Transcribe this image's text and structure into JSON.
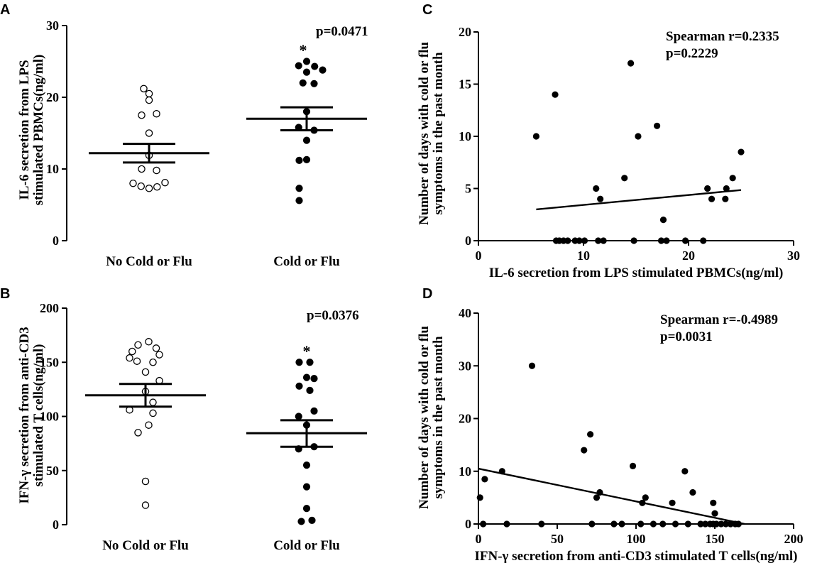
{
  "chart_data": [
    {
      "panel": "A",
      "type": "scatter",
      "ylabel_line1": "IL-6 secretion from LPS",
      "ylabel_line2": "stimulated PBMCs(ng/ml)",
      "ylim": [
        0,
        30
      ],
      "yticks": [
        "0",
        "10",
        "20",
        "30"
      ],
      "categories": [
        "No Cold or Flu",
        "Cold or Flu"
      ],
      "annotation": "p=0.0471",
      "significance": "*",
      "groups": [
        {
          "name": "No Cold or Flu",
          "marker": "open-circle",
          "points": [
            {
              "v": 21.2,
              "o": -0.1
            },
            {
              "v": 20.5,
              "o": 0.0
            },
            {
              "v": 19.6,
              "o": 0.0
            },
            {
              "v": 17.5,
              "o": -0.14
            },
            {
              "v": 17.7,
              "o": 0.14
            },
            {
              "v": 15.0,
              "o": 0.0
            },
            {
              "v": 11.9,
              "o": 0.0
            },
            {
              "v": 10.0,
              "o": -0.14
            },
            {
              "v": 9.8,
              "o": 0.14
            },
            {
              "v": 8.0,
              "o": -0.3
            },
            {
              "v": 7.6,
              "o": -0.15
            },
            {
              "v": 7.3,
              "o": 0.0
            },
            {
              "v": 7.5,
              "o": 0.15
            },
            {
              "v": 8.1,
              "o": 0.3
            }
          ],
          "mean": 12.2,
          "sem_low": 10.9,
          "sem_high": 13.5
        },
        {
          "name": "Cold or Flu",
          "marker": "filled-circle",
          "points": [
            {
              "v": 25.0,
              "o": 0.0
            },
            {
              "v": 24.4,
              "o": -0.15
            },
            {
              "v": 24.3,
              "o": 0.15
            },
            {
              "v": 23.8,
              "o": 0.3
            },
            {
              "v": 23.5,
              "o": 0.0
            },
            {
              "v": 22.0,
              "o": -0.07
            },
            {
              "v": 21.9,
              "o": 0.14
            },
            {
              "v": 18.0,
              "o": 0.0
            },
            {
              "v": 15.8,
              "o": -0.15
            },
            {
              "v": 15.4,
              "o": 0.14
            },
            {
              "v": 14.0,
              "o": 0.0
            },
            {
              "v": 11.2,
              "o": -0.14
            },
            {
              "v": 11.3,
              "o": 0.0
            },
            {
              "v": 7.3,
              "o": -0.14
            },
            {
              "v": 5.6,
              "o": -0.14
            }
          ],
          "mean": 17.0,
          "sem_low": 15.4,
          "sem_high": 18.6
        }
      ]
    },
    {
      "panel": "B",
      "type": "scatter",
      "ylabel_line1": "IFN-γ secretion from anti-CD3",
      "ylabel_line2": "stimulated T cells(ng/ml)",
      "ylim": [
        0,
        200
      ],
      "yticks": [
        "0",
        "50",
        "100",
        "150",
        "200"
      ],
      "categories": [
        "No Cold or Flu",
        "Cold or Flu"
      ],
      "annotation": "p=0.0376",
      "significance": "*",
      "groups": [
        {
          "name": "No Cold or Flu",
          "marker": "open-circle",
          "points": [
            {
              "v": 169,
              "o": 0.06
            },
            {
              "v": 166,
              "o": -0.14
            },
            {
              "v": 163,
              "o": 0.2
            },
            {
              "v": 160,
              "o": -0.25
            },
            {
              "v": 157,
              "o": 0.26
            },
            {
              "v": 154,
              "o": -0.3
            },
            {
              "v": 151,
              "o": -0.16
            },
            {
              "v": 150,
              "o": 0.14
            },
            {
              "v": 141,
              "o": 0.0
            },
            {
              "v": 133,
              "o": 0.26
            },
            {
              "v": 123,
              "o": 0.0
            },
            {
              "v": 113,
              "o": 0.14
            },
            {
              "v": 106,
              "o": -0.3
            },
            {
              "v": 103,
              "o": 0.14
            },
            {
              "v": 92,
              "o": 0.06
            },
            {
              "v": 85,
              "o": -0.14
            },
            {
              "v": 40,
              "o": 0.0
            },
            {
              "v": 18,
              "o": 0.0
            }
          ],
          "mean": 119.5,
          "sem_low": 109,
          "sem_high": 130
        },
        {
          "name": "Cold or Flu",
          "marker": "filled-circle",
          "points": [
            {
              "v": 150,
              "o": -0.14
            },
            {
              "v": 150,
              "o": 0.06
            },
            {
              "v": 136,
              "o": 0.0
            },
            {
              "v": 135,
              "o": 0.14
            },
            {
              "v": 128,
              "o": -0.14
            },
            {
              "v": 124,
              "o": 0.06
            },
            {
              "v": 105,
              "o": 0.14
            },
            {
              "v": 100,
              "o": -0.15
            },
            {
              "v": 92,
              "o": 0.0
            },
            {
              "v": 72,
              "o": 0.14
            },
            {
              "v": 70,
              "o": -0.15
            },
            {
              "v": 55,
              "o": 0.0
            },
            {
              "v": 35,
              "o": 0.0
            },
            {
              "v": 15,
              "o": 0.0
            },
            {
              "v": 3,
              "o": -0.1
            },
            {
              "v": 4,
              "o": 0.1
            }
          ],
          "mean": 84.5,
          "sem_low": 72,
          "sem_high": 96.5
        }
      ]
    },
    {
      "panel": "C",
      "type": "scatter",
      "xlabel": "IL-6 secretion from LPS stimulated PBMCs(ng/ml)",
      "ylabel_line1": "Number of days with cold or flu",
      "ylabel_line2": "symptoms in the past month",
      "xlim": [
        0,
        30
      ],
      "ylim": [
        0,
        20
      ],
      "xticks": [
        "0",
        "10",
        "20",
        "30"
      ],
      "yticks": [
        "0",
        "5",
        "10",
        "15",
        "20"
      ],
      "annotation_line1": "Spearman r=0.2335",
      "annotation_line2": "p=0.2229",
      "points": [
        [
          5.5,
          10
        ],
        [
          7.3,
          14
        ],
        [
          14.5,
          17
        ],
        [
          15.2,
          10
        ],
        [
          17.0,
          11
        ],
        [
          11.2,
          5
        ],
        [
          11.6,
          4
        ],
        [
          13.9,
          6
        ],
        [
          17.6,
          2
        ],
        [
          21.8,
          5
        ],
        [
          22.2,
          4
        ],
        [
          23.6,
          5
        ],
        [
          23.5,
          4
        ],
        [
          24.2,
          6
        ],
        [
          25.0,
          8.5
        ],
        [
          7.4,
          0
        ],
        [
          7.7,
          0
        ],
        [
          8.1,
          0
        ],
        [
          8.5,
          0
        ],
        [
          9.2,
          0
        ],
        [
          9.6,
          0
        ],
        [
          10.1,
          0
        ],
        [
          11.4,
          0
        ],
        [
          11.9,
          0
        ],
        [
          14.8,
          0
        ],
        [
          17.4,
          0
        ],
        [
          17.9,
          0
        ],
        [
          19.7,
          0
        ],
        [
          21.4,
          0
        ]
      ],
      "fit_line": [
        [
          5.5,
          3.0
        ],
        [
          25.0,
          4.85
        ]
      ]
    },
    {
      "panel": "D",
      "type": "scatter",
      "xlabel": "IFN-γ secretion from anti-CD3 stimulated T cells(ng/ml)",
      "ylabel_line1": "Number of days with cold or flu",
      "ylabel_line2": "symptoms in the past month",
      "xlim": [
        0,
        200
      ],
      "ylim": [
        0,
        40
      ],
      "xticks": [
        "0",
        "50",
        "100",
        "150",
        "200"
      ],
      "yticks": [
        "0",
        "10",
        "20",
        "30",
        "40"
      ],
      "annotation_line1": "Spearman r=-0.4989",
      "annotation_line2": "p=0.0031",
      "points": [
        [
          1,
          5
        ],
        [
          4,
          8.5
        ],
        [
          34,
          30
        ],
        [
          15,
          10
        ],
        [
          67,
          14
        ],
        [
          71,
          17
        ],
        [
          98,
          11
        ],
        [
          131,
          10
        ],
        [
          75,
          5
        ],
        [
          77,
          6
        ],
        [
          104,
          4
        ],
        [
          106,
          5
        ],
        [
          123,
          4
        ],
        [
          136,
          6
        ],
        [
          149,
          4
        ],
        [
          150,
          2
        ],
        [
          3,
          0
        ],
        [
          18,
          0
        ],
        [
          40,
          0
        ],
        [
          72,
          0
        ],
        [
          86,
          0
        ],
        [
          91,
          0
        ],
        [
          103,
          0
        ],
        [
          111,
          0
        ],
        [
          117,
          0
        ],
        [
          125,
          0
        ],
        [
          133,
          0
        ],
        [
          141,
          0
        ],
        [
          144,
          0
        ],
        [
          147,
          0
        ],
        [
          149,
          0
        ],
        [
          151,
          0
        ],
        [
          154,
          0
        ],
        [
          157,
          0
        ],
        [
          160,
          0
        ],
        [
          163,
          0
        ],
        [
          165,
          0
        ]
      ],
      "fit_line": [
        [
          0,
          10.5
        ],
        [
          169,
          0
        ]
      ]
    }
  ]
}
